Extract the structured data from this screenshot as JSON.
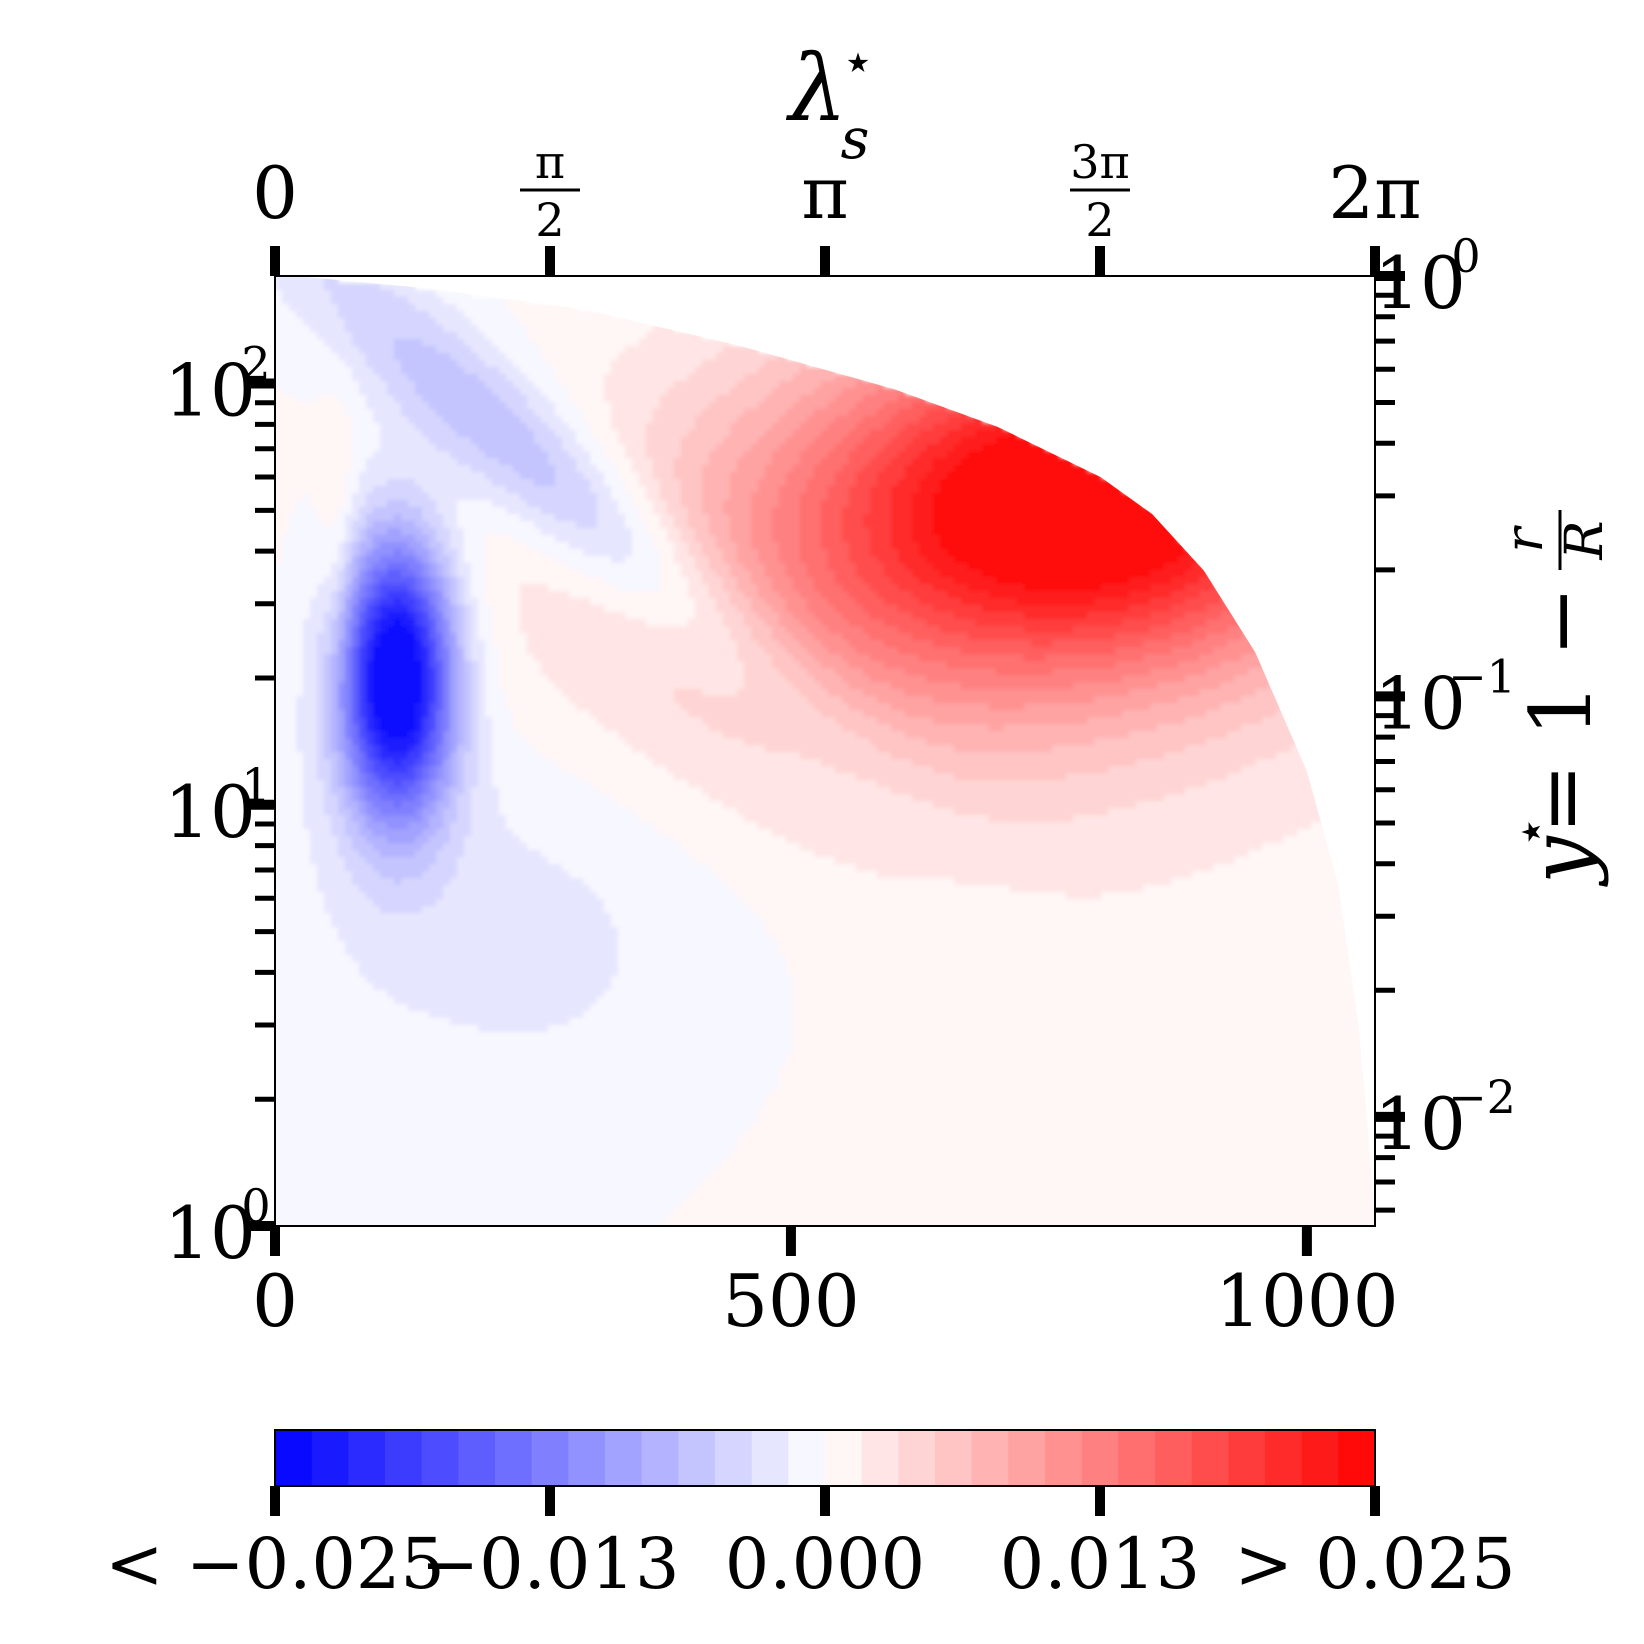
{
  "chart_data": {
    "type": "heatmap",
    "title": "",
    "bottom_axis": {
      "label": "",
      "ticks": [
        {
          "value": 0,
          "label": "0"
        },
        {
          "value": 500,
          "label": "500"
        },
        {
          "value": 1000,
          "label": "1000"
        }
      ],
      "range": [
        0,
        1066
      ]
    },
    "top_axis": {
      "label_base": "λ",
      "label_sup": "⋆",
      "label_sub": "s",
      "ticks": [
        {
          "value": 0,
          "label": "0"
        },
        {
          "value": 0.25,
          "num": "π",
          "den": "2"
        },
        {
          "value": 0.5,
          "label": "π"
        },
        {
          "value": 0.75,
          "num": "3π",
          "den": "2"
        },
        {
          "value": 1,
          "label": "2π"
        }
      ],
      "range": [
        0,
        6.2832
      ]
    },
    "left_axis": {
      "label": "",
      "scale": "log",
      "ticks": [
        {
          "value": 1,
          "base": "10",
          "exp": "0"
        },
        {
          "value": 10,
          "base": "10",
          "exp": "1"
        },
        {
          "value": 100,
          "base": "10",
          "exp": "2"
        }
      ],
      "range": [
        1,
        180
      ]
    },
    "right_axis": {
      "label_lhs": "y",
      "label_lhs_sup": "⋆",
      "label_rhs": "= 1 −",
      "label_num": "r",
      "label_den": "R",
      "scale": "log",
      "ticks": [
        {
          "value": 1,
          "base": "10",
          "exp": "0"
        },
        {
          "value": 0.1,
          "base": "10",
          "exp": "−1"
        },
        {
          "value": 0.01,
          "base": "10",
          "exp": "−2"
        }
      ],
      "range": [
        0.0055,
        1
      ]
    },
    "colorbar": {
      "vmin": -0.025,
      "vmax": 0.025,
      "levels": 30,
      "low_color": "#0000ff",
      "mid_color": "#ffffff",
      "high_color": "#ff0000",
      "tick_labels": [
        "< −0.025",
        "−0.013",
        "0.000",
        "0.013",
        "> 0.025"
      ]
    },
    "features": [
      {
        "type": "min",
        "x": 120,
        "y": 20,
        "value": -0.025
      },
      {
        "type": "max",
        "x": 800,
        "y": 52,
        "value": 0.022
      },
      {
        "type": "boundary",
        "description": "data region bounded above-right by curved edge from (20,180) to (1066,1)"
      }
    ]
  }
}
